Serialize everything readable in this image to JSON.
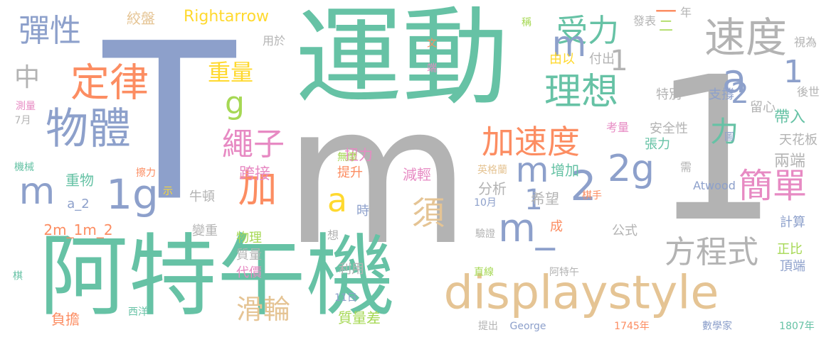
{
  "word_cloud": {
    "palette": {
      "green": "#66c2a5",
      "orange": "#fc8d62",
      "blue": "#8da0cb",
      "pink": "#e78ac3",
      "lime": "#a6d854",
      "yellow": "#ffd92f",
      "tan": "#e5c494",
      "gray": "#b3b3b3"
    },
    "words": [
      "T",
      "m",
      "運動",
      "1",
      "阿特午機",
      "displaystyle",
      "速度",
      "理想",
      "物體",
      "定律",
      "彈性",
      "受力",
      "a",
      "加速度",
      "簡單",
      "方程式",
      "繩子",
      "2g",
      "1g",
      "加",
      "滑輪",
      "m_",
      "2",
      "須",
      "重量",
      "g",
      "中",
      "力",
      "扭力",
      "跨接",
      "分析",
      "希望",
      "帶入",
      "兩端",
      "Rightarrow",
      "絞盤",
      "年",
      "發表",
      "用於",
      "視為",
      "稱",
      "文",
      "端",
      "支撐",
      "特別",
      "留心",
      "後世",
      "圖",
      "安全性",
      "天花板",
      "張力",
      "考量",
      "需",
      "增加",
      "由以",
      "付出",
      "成",
      "公式",
      "計算",
      "正比",
      "頂端",
      "無摩",
      "減輕",
      "提升",
      "時",
      "英格蘭",
      "棋手",
      "Atwood",
      "測量",
      "7月",
      "機械",
      "擦力",
      "重物",
      "牛頓",
      "示",
      "a_2",
      "2m_1m_2",
      "變重",
      "物理",
      "質量",
      "代價",
      "想",
      "利用",
      "10月",
      "驗證",
      "阿特午",
      "直線",
      "棋",
      "西洋",
      "11日",
      "負擔",
      "質量差",
      "提出",
      "George",
      "1745年",
      "數學家",
      "1807年",
      "一",
      "二"
    ]
  }
}
